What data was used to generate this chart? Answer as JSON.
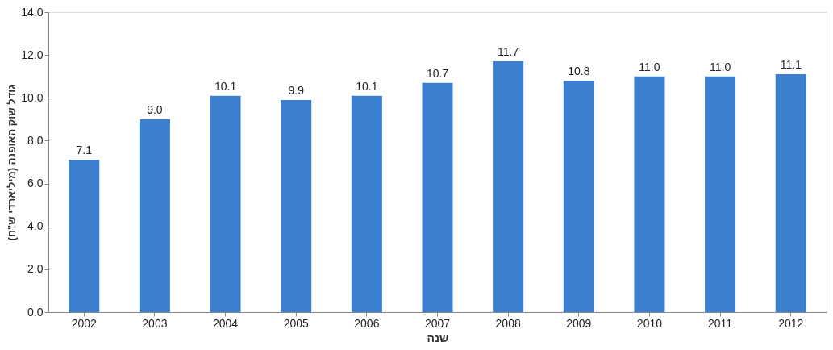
{
  "chart_data": {
    "type": "bar",
    "xlabel": "שנה",
    "ylabel": "גודל שוק האופנה (מיליארדי ש\"ח)",
    "categories": [
      "2002",
      "2003",
      "2004",
      "2005",
      "2006",
      "2007",
      "2008",
      "2009",
      "2010",
      "2011",
      "2012"
    ],
    "values": [
      7.1,
      9.0,
      10.1,
      9.9,
      10.1,
      10.7,
      11.7,
      10.8,
      11.0,
      11.0,
      11.1
    ],
    "value_labels": [
      "7.1",
      "9.0",
      "10.1",
      "9.9",
      "10.1",
      "10.7",
      "11.7",
      "10.8",
      "11.0",
      "11.0",
      "11.1"
    ],
    "color": "#3c7fcf",
    "ylim": [
      0,
      14
    ],
    "yticks": [
      {
        "value": 0,
        "label": "0.0"
      },
      {
        "value": 2,
        "label": "2.0"
      },
      {
        "value": 4,
        "label": "4.0"
      },
      {
        "value": 6,
        "label": "6.0"
      },
      {
        "value": 8,
        "label": "8.0"
      },
      {
        "value": 10,
        "label": "10.0"
      },
      {
        "value": 12,
        "label": "12.0"
      },
      {
        "value": 14,
        "label": "14.0"
      }
    ],
    "grid": false
  }
}
